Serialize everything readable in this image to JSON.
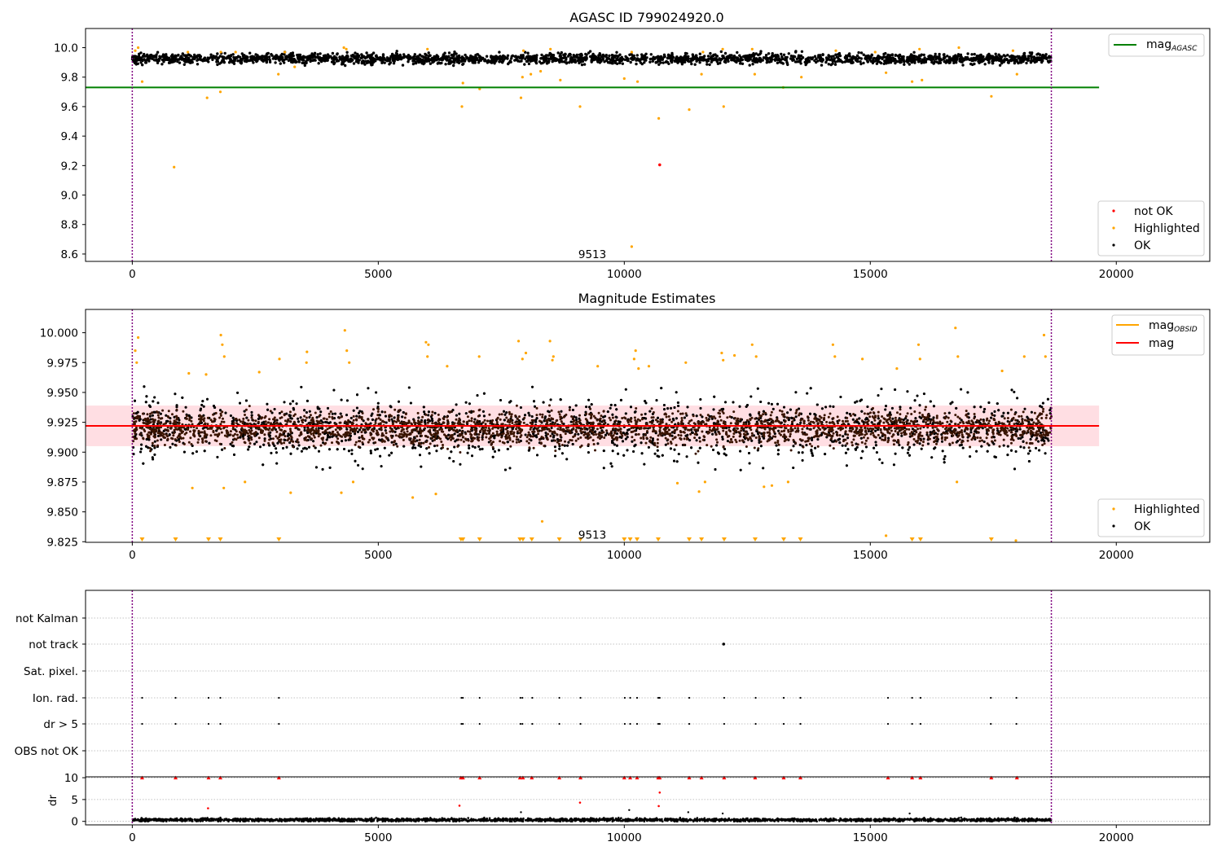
{
  "chart_data": [
    {
      "type": "scatter",
      "title": "AGASC ID 799024920.0",
      "xlim": [
        -950,
        21900
      ],
      "ylim": [
        8.55,
        10.13
      ],
      "xticks": [
        0,
        5000,
        10000,
        15000,
        20000
      ],
      "yticks": [
        8.6,
        8.8,
        9.0,
        9.2,
        9.4,
        9.6,
        9.8,
        10.0
      ],
      "ytick_labels": [
        "8.6",
        "8.8",
        "9.0",
        "9.2",
        "9.4",
        "9.6",
        "9.8",
        "10.0"
      ],
      "obs_boundaries": [
        0,
        18680
      ],
      "obs_label": {
        "text": "9513",
        "x": 9350,
        "y": 8.6
      },
      "reference_line": {
        "name": "mag",
        "subscript": "AGASC",
        "y": 9.73,
        "x_range": [
          -950,
          19650
        ],
        "color": "#008000"
      },
      "legend_lines": {
        "position": "upper right",
        "items": [
          {
            "label": "mag",
            "subscript": "AGASC",
            "color": "#008000"
          }
        ]
      },
      "legend_points": {
        "position": "lower right",
        "items": [
          {
            "label": "not OK",
            "color": "#ff0000"
          },
          {
            "label": "Highlighted",
            "color": "#ffa500"
          },
          {
            "label": "OK",
            "color": "#000000"
          }
        ]
      },
      "series": [
        {
          "name": "OK",
          "color": "#000000",
          "band": {
            "center": 9.925,
            "half_width": 0.035,
            "x_range": [
              0,
              18680
            ]
          }
        },
        {
          "name": "Highlighted",
          "color": "#ffa500",
          "points": [
            [
              850,
              9.19
            ],
            [
              1520,
              9.66
            ],
            [
              1790,
              9.7
            ],
            [
              200,
              9.77
            ],
            [
              2970,
              9.82
            ],
            [
              3300,
              9.87
            ],
            [
              6700,
              9.6
            ],
            [
              6720,
              9.76
            ],
            [
              7060,
              9.72
            ],
            [
              7900,
              9.66
            ],
            [
              7930,
              9.8
            ],
            [
              8100,
              9.82
            ],
            [
              8300,
              9.84
            ],
            [
              8700,
              9.78
            ],
            [
              9100,
              9.6
            ],
            [
              10000,
              9.79
            ],
            [
              10270,
              9.77
            ],
            [
              10700,
              9.52
            ],
            [
              11320,
              9.58
            ],
            [
              11570,
              9.82
            ],
            [
              12020,
              9.6
            ],
            [
              12650,
              9.82
            ],
            [
              13230,
              9.73
            ],
            [
              13600,
              9.8
            ],
            [
              15320,
              9.83
            ],
            [
              15850,
              9.77
            ],
            [
              16050,
              9.78
            ],
            [
              17460,
              9.67
            ],
            [
              17980,
              9.82
            ],
            [
              10150,
              8.65
            ],
            [
              60,
              9.98
            ],
            [
              120,
              10.0
            ],
            [
              1130,
              9.97
            ],
            [
              1800,
              9.97
            ],
            [
              2100,
              9.97
            ],
            [
              3100,
              9.97
            ],
            [
              4300,
              10.0
            ],
            [
              4350,
              9.99
            ],
            [
              6000,
              9.99
            ],
            [
              7950,
              9.98
            ],
            [
              8500,
              9.99
            ],
            [
              10150,
              9.97
            ],
            [
              11600,
              9.97
            ],
            [
              12000,
              9.99
            ],
            [
              12600,
              9.99
            ],
            [
              14300,
              9.98
            ],
            [
              15100,
              9.97
            ],
            [
              16000,
              9.99
            ],
            [
              16800,
              10.0
            ],
            [
              17900,
              9.98
            ]
          ]
        },
        {
          "name": "not OK",
          "color": "#ff0000",
          "points": [
            [
              10720,
              9.205
            ]
          ]
        }
      ]
    },
    {
      "type": "scatter",
      "title": "Magnitude Estimates",
      "xlim": [
        -950,
        21900
      ],
      "ylim": [
        9.8245,
        10.0195
      ],
      "xticks": [
        0,
        5000,
        10000,
        15000,
        20000
      ],
      "yticks": [
        9.825,
        9.85,
        9.875,
        9.9,
        9.925,
        9.95,
        9.975,
        10.0
      ],
      "ytick_labels": [
        "9.825",
        "9.850",
        "9.875",
        "9.900",
        "9.925",
        "9.950",
        "9.975",
        "10.000"
      ],
      "obs_boundaries": [
        0,
        18680
      ],
      "obs_label": {
        "text": "9513",
        "x": 9350,
        "y": 9.831
      },
      "mean_line": {
        "name": "mag",
        "y": 9.922,
        "x_range": [
          -950,
          19650
        ],
        "color": "#ff0000"
      },
      "error_band": {
        "y_range": [
          9.905,
          9.939
        ],
        "x_range": [
          -950,
          19650
        ],
        "color": "#ffb6c1"
      },
      "obsid_line": {
        "name": "mag",
        "subscript": "OBSID",
        "y": 9.922,
        "x_range": [
          0,
          18680
        ],
        "color": "#ffa500"
      },
      "legend_lines": {
        "position": "upper right",
        "items": [
          {
            "label": "mag",
            "subscript": "OBSID",
            "color": "#ffa500"
          },
          {
            "label": "mag",
            "color": "#ff0000"
          }
        ]
      },
      "legend_points": {
        "position": "lower right",
        "items": [
          {
            "label": "Highlighted",
            "color": "#ffa500"
          },
          {
            "label": "OK",
            "color": "#000000"
          }
        ]
      },
      "offscale_markers_x": [
        200,
        880,
        1550,
        1790,
        2980,
        6680,
        6720,
        7060,
        7880,
        7940,
        8120,
        8680,
        9110,
        10000,
        10120,
        10260,
        10690,
        11320,
        11570,
        12030,
        12660,
        13240,
        13580,
        15850,
        16020,
        17460
      ],
      "series": [
        {
          "name": "OK",
          "color": "#000000",
          "band": {
            "center": 9.92,
            "half_width": 0.021,
            "outer_half_width": 0.035,
            "x_range": [
              0,
              18680
            ]
          }
        },
        {
          "name": "Highlighted",
          "color": "#ffa500",
          "points": [
            [
              60,
              9.985
            ],
            [
              120,
              9.996
            ],
            [
              90,
              9.975
            ],
            [
              1150,
              9.966
            ],
            [
              1220,
              9.87
            ],
            [
              1500,
              9.965
            ],
            [
              1800,
              9.998
            ],
            [
              1830,
              9.99
            ],
            [
              1870,
              9.98
            ],
            [
              1860,
              9.87
            ],
            [
              2290,
              9.875
            ],
            [
              2580,
              9.967
            ],
            [
              2990,
              9.978
            ],
            [
              3220,
              9.866
            ],
            [
              3550,
              9.984
            ],
            [
              3540,
              9.975
            ],
            [
              4250,
              9.866
            ],
            [
              4320,
              10.002
            ],
            [
              4360,
              9.985
            ],
            [
              4410,
              9.975
            ],
            [
              4490,
              9.875
            ],
            [
              5700,
              9.862
            ],
            [
              5970,
              9.992
            ],
            [
              6000,
              9.98
            ],
            [
              6020,
              9.99
            ],
            [
              6170,
              9.865
            ],
            [
              6400,
              9.972
            ],
            [
              7050,
              9.98
            ],
            [
              7850,
              9.993
            ],
            [
              7930,
              9.978
            ],
            [
              8000,
              9.983
            ],
            [
              8330,
              9.842
            ],
            [
              8490,
              9.993
            ],
            [
              8540,
              9.977
            ],
            [
              8560,
              9.98
            ],
            [
              9460,
              9.972
            ],
            [
              10200,
              9.978
            ],
            [
              10230,
              9.985
            ],
            [
              10290,
              9.97
            ],
            [
              10500,
              9.972
            ],
            [
              11080,
              9.874
            ],
            [
              11250,
              9.975
            ],
            [
              11520,
              9.867
            ],
            [
              11640,
              9.875
            ],
            [
              11980,
              9.983
            ],
            [
              12010,
              9.977
            ],
            [
              12240,
              9.981
            ],
            [
              12600,
              9.99
            ],
            [
              12680,
              9.98
            ],
            [
              12840,
              9.871
            ],
            [
              13000,
              9.872
            ],
            [
              13330,
              9.875
            ],
            [
              14240,
              9.99
            ],
            [
              14280,
              9.98
            ],
            [
              14840,
              9.978
            ],
            [
              15320,
              9.83
            ],
            [
              15540,
              9.97
            ],
            [
              15980,
              9.99
            ],
            [
              16010,
              9.978
            ],
            [
              16730,
              10.004
            ],
            [
              16760,
              9.875
            ],
            [
              16780,
              9.98
            ],
            [
              17680,
              9.968
            ],
            [
              17960,
              9.826
            ],
            [
              18130,
              9.98
            ],
            [
              18530,
              9.998
            ],
            [
              18560,
              9.98
            ]
          ]
        }
      ]
    },
    {
      "type": "scatter",
      "title": "",
      "xlim": [
        -950,
        21900
      ],
      "xticks": [
        0,
        5000,
        10000,
        15000,
        20000
      ],
      "obs_boundaries": [
        0,
        18680
      ],
      "flag_rows": [
        "not Kalman",
        "not track",
        "Sat. pixel.",
        "Ion. rad.",
        "dr > 5",
        "OBS not OK"
      ],
      "flag_points": [
        {
          "row": "not track",
          "x": [
            12020
          ],
          "style": "filled"
        },
        {
          "row": "Ion. rad.",
          "x": [
            200,
            880,
            1550,
            1790,
            2980,
            6690,
            6720,
            7060,
            7890,
            7930,
            8130,
            8680,
            9110,
            10010,
            10120,
            10260,
            10690,
            10720,
            11320,
            12030,
            12670,
            13240,
            13580,
            15360,
            15850,
            16020,
            17450,
            17970
          ],
          "style": "small"
        },
        {
          "row": "dr > 5",
          "x": [
            200,
            880,
            1550,
            1790,
            2980,
            6690,
            6720,
            7060,
            7890,
            7930,
            8130,
            8680,
            9110,
            10010,
            10120,
            10260,
            10690,
            10720,
            11320,
            12030,
            12670,
            13240,
            13580,
            15360,
            15850,
            16020,
            17450,
            17970
          ],
          "style": "small"
        }
      ],
      "dr_panel": {
        "ylabel": "dr",
        "ylim": [
          -0.8,
          10.2
        ],
        "yticks": [
          0,
          5,
          10
        ],
        "ytick_labels": [
          "0",
          "5",
          "10"
        ],
        "capped_markers_x": [
          200,
          880,
          1550,
          1790,
          2980,
          6680,
          6720,
          7060,
          7880,
          7940,
          8120,
          8680,
          9110,
          10000,
          10120,
          10260,
          10690,
          10720,
          11320,
          11570,
          12030,
          12660,
          13240,
          13580,
          15360,
          15850,
          16020,
          17460,
          17980
        ],
        "red_points": [
          [
            1540,
            3.0
          ],
          [
            6650,
            3.6
          ],
          [
            9100,
            4.3
          ],
          [
            10700,
            3.5
          ],
          [
            10720,
            6.6
          ]
        ],
        "black_points": [
          [
            7900,
            2.1
          ],
          [
            10100,
            2.6
          ],
          [
            11300,
            2.1
          ],
          [
            12000,
            1.8
          ],
          [
            15800,
            1.8
          ]
        ],
        "bulk": {
          "center": 0.35,
          "spread": 0.35,
          "x_range": [
            0,
            18680
          ]
        }
      }
    }
  ]
}
